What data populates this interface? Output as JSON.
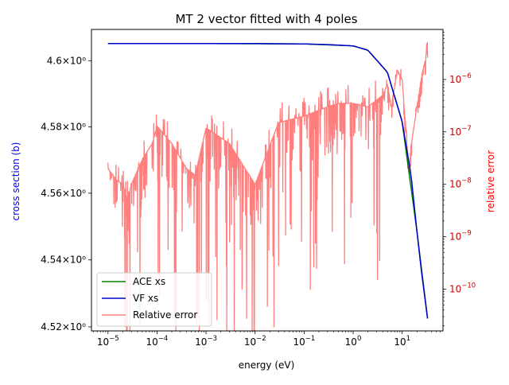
{
  "chart_data": {
    "type": "line",
    "title": "MT 2 vector fitted with 4 poles",
    "xlabel": "energy (eV)",
    "ylabel_left": "cross section (b)",
    "ylabel_right": "relative error",
    "x_scale": "log",
    "y_left_scale": "log",
    "y_right_scale": "log",
    "xlim": [
      4.6e-06,
      68
    ],
    "ylim_left": [
      4.5188,
      4.6095
    ],
    "ylim_right": [
      1.6e-11,
      9e-06
    ],
    "x_ticks": [
      {
        "base": "10",
        "exp": "−5"
      },
      {
        "base": "10",
        "exp": "−4"
      },
      {
        "base": "10",
        "exp": "−3"
      },
      {
        "base": "10",
        "exp": "−2"
      },
      {
        "base": "10",
        "exp": "−1"
      },
      {
        "base": "10",
        "exp": "0"
      },
      {
        "base": "10",
        "exp": "1"
      }
    ],
    "x_tick_values": [
      1e-05,
      0.0001,
      0.001,
      0.01,
      0.1,
      1,
      10
    ],
    "y_left_ticks": [
      {
        "value": 4.52,
        "label": "4.52×10⁰"
      },
      {
        "value": 4.54,
        "label": "4.54×10⁰"
      },
      {
        "value": 4.56,
        "label": "4.56×10⁰"
      },
      {
        "value": 4.58,
        "label": "4.58×10⁰"
      },
      {
        "value": 4.6,
        "label": "4.6×10⁰"
      }
    ],
    "y_right_ticks": [
      {
        "value": 1e-10,
        "base": "10",
        "exp": "−10"
      },
      {
        "value": 1e-09,
        "base": "10",
        "exp": "−9"
      },
      {
        "value": 1e-08,
        "base": "10",
        "exp": "−8"
      },
      {
        "value": 1e-07,
        "base": "10",
        "exp": "−7"
      },
      {
        "value": 1e-06,
        "base": "10",
        "exp": "−6"
      }
    ],
    "legend_position": "lower-left",
    "legend": [
      "ACE xs",
      "VF xs",
      "Relative error"
    ],
    "series": [
      {
        "name": "ACE xs",
        "axis": "left",
        "color": "#008000",
        "x": [
          1e-05,
          0.001,
          0.1,
          1,
          2,
          5,
          10,
          20,
          33
        ],
        "y": [
          4.6052,
          4.6052,
          4.6051,
          4.6045,
          4.6032,
          4.5965,
          4.5815,
          4.5485,
          4.5225
        ]
      },
      {
        "name": "VF xs",
        "axis": "left",
        "color": "#0000cc",
        "x": [
          1e-05,
          0.001,
          0.01,
          0.1,
          0.3,
          1,
          2,
          5,
          10,
          15,
          20,
          25,
          33
        ],
        "y": [
          4.6052,
          4.6052,
          4.6052,
          4.6051,
          4.6049,
          4.6045,
          4.6032,
          4.5965,
          4.5815,
          4.566,
          4.5485,
          4.536,
          4.5225
        ]
      },
      {
        "name": "Relative error",
        "axis": "right",
        "color": "#ff7f7f",
        "x": [
          1e-05,
          1.5e-05,
          2e-05,
          2.5e-05,
          3e-05,
          5e-05,
          8e-05,
          0.0001,
          0.0002,
          0.0004,
          0.0006,
          0.001,
          0.003,
          0.01,
          0.03,
          0.1,
          0.3,
          0.5,
          1,
          2,
          4,
          5,
          6,
          8,
          10,
          14,
          15,
          20,
          25,
          30,
          33
        ],
        "y": [
          2e-08,
          1.2e-08,
          1e-08,
          5e-09,
          1e-08,
          3e-08,
          6e-08,
          1.3e-07,
          6e-08,
          2e-08,
          1.5e-08,
          1.2e-07,
          6e-08,
          1e-08,
          1.5e-07,
          2e-07,
          3e-07,
          3.5e-07,
          3.5e-07,
          3e-07,
          5e-07,
          8e-07,
          3e-07,
          1.5e-06,
          1e-06,
          1.5e-08,
          5e-08,
          3e-07,
          1.2e-06,
          2.5e-06,
          5.5e-06
        ],
        "noise_dips_to": 1.6e-11
      }
    ]
  }
}
